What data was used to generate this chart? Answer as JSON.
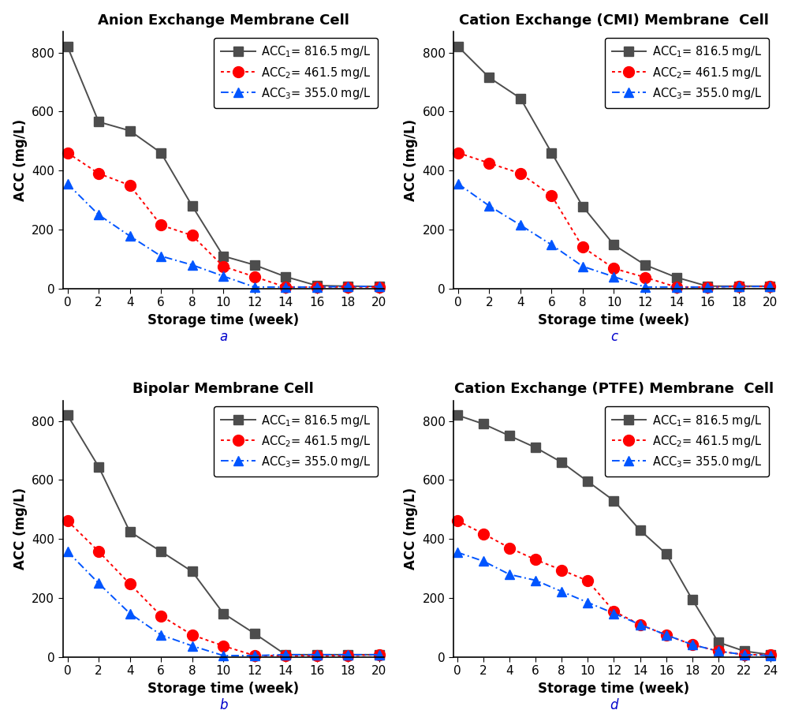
{
  "panels": [
    {
      "title": "Anion Exchange Membrane Cell",
      "label": "a",
      "x_weeks": [
        0,
        2,
        4,
        6,
        8,
        10,
        12,
        14,
        16,
        18,
        20
      ],
      "xlim": [
        -0.3,
        20.3
      ],
      "xticks": [
        0,
        2,
        4,
        6,
        8,
        10,
        12,
        14,
        16,
        18,
        20
      ],
      "series": [
        {
          "name": "ACC$_1$= 816.5 mg/L",
          "y": [
            820,
            565,
            535,
            460,
            280,
            110,
            80,
            40,
            10,
            8,
            7
          ],
          "color": "#4d4d4d",
          "linestyle": "solid",
          "marker": "s",
          "markersize": 8
        },
        {
          "name": "ACC$_2$= 461.5 mg/L",
          "y": [
            460,
            390,
            350,
            215,
            180,
            75,
            40,
            5,
            5,
            5,
            5
          ],
          "color": "#ff0000",
          "linestyle": "dotted",
          "marker": "o",
          "markersize": 10
        },
        {
          "name": "ACC$_3$= 355.0 mg/L",
          "y": [
            355,
            250,
            178,
            110,
            80,
            42,
            5,
            5,
            5,
            7,
            7
          ],
          "color": "#0055ff",
          "linestyle": "dashdot",
          "marker": "^",
          "markersize": 9
        }
      ],
      "ylim": [
        0,
        870
      ],
      "yticks": [
        0,
        200,
        400,
        600,
        800
      ],
      "ylabel": "ACC (mg/L)",
      "xlabel": "Storage time (week)"
    },
    {
      "title": "Cation Exchange (CMI) Membrane  Cell",
      "label": "c",
      "x_weeks": [
        0,
        2,
        4,
        6,
        8,
        10,
        12,
        14,
        16,
        18,
        20
      ],
      "xlim": [
        -0.3,
        20.3
      ],
      "xticks": [
        0,
        2,
        4,
        6,
        8,
        10,
        12,
        14,
        16,
        18,
        20
      ],
      "series": [
        {
          "name": "ACC$_1$= 816.5 mg/L",
          "y": [
            820,
            715,
            645,
            460,
            278,
            148,
            80,
            38,
            8,
            8,
            8
          ],
          "color": "#4d4d4d",
          "linestyle": "solid",
          "marker": "s",
          "markersize": 8
        },
        {
          "name": "ACC$_2$= 461.5 mg/L",
          "y": [
            460,
            425,
            390,
            315,
            140,
            68,
            38,
            5,
            5,
            7,
            7
          ],
          "color": "#ff0000",
          "linestyle": "dotted",
          "marker": "o",
          "markersize": 10
        },
        {
          "name": "ACC$_3$= 355.0 mg/L",
          "y": [
            355,
            280,
            215,
            148,
            75,
            40,
            5,
            5,
            5,
            7,
            7
          ],
          "color": "#0055ff",
          "linestyle": "dashdot",
          "marker": "^",
          "markersize": 9
        }
      ],
      "ylim": [
        0,
        870
      ],
      "yticks": [
        0,
        200,
        400,
        600,
        800
      ],
      "ylabel": "ACC (mg/L)",
      "xlabel": "Storage time (week)"
    },
    {
      "title": "Bipolar Membrane Cell",
      "label": "b",
      "x_weeks": [
        0,
        2,
        4,
        6,
        8,
        10,
        12,
        14,
        16,
        18,
        20
      ],
      "xlim": [
        -0.3,
        20.3
      ],
      "xticks": [
        0,
        2,
        4,
        6,
        8,
        10,
        12,
        14,
        16,
        18,
        20
      ],
      "series": [
        {
          "name": "ACC$_1$= 816.5 mg/L",
          "y": [
            820,
            645,
            425,
            358,
            290,
            148,
            80,
            8,
            8,
            8,
            8
          ],
          "color": "#4d4d4d",
          "linestyle": "solid",
          "marker": "s",
          "markersize": 8
        },
        {
          "name": "ACC$_2$= 461.5 mg/L",
          "y": [
            462,
            358,
            248,
            140,
            75,
            38,
            5,
            5,
            5,
            5,
            8
          ],
          "color": "#ff0000",
          "linestyle": "dotted",
          "marker": "o",
          "markersize": 10
        },
        {
          "name": "ACC$_3$= 355.0 mg/L",
          "y": [
            358,
            250,
            148,
            75,
            38,
            5,
            5,
            8,
            8,
            8,
            8
          ],
          "color": "#0055ff",
          "linestyle": "dashdot",
          "marker": "^",
          "markersize": 9
        }
      ],
      "ylim": [
        0,
        870
      ],
      "yticks": [
        0,
        200,
        400,
        600,
        800
      ],
      "ylabel": "ACC (mg/L)",
      "xlabel": "Storage time (week)"
    },
    {
      "title": "Cation Exchange (PTFE) Membrane  Cell",
      "label": "d",
      "x_weeks": [
        0,
        2,
        4,
        6,
        8,
        10,
        12,
        14,
        16,
        18,
        20,
        22,
        24
      ],
      "xlim": [
        -0.3,
        24.3
      ],
      "xticks": [
        0,
        2,
        4,
        6,
        8,
        10,
        12,
        14,
        16,
        18,
        20,
        22,
        24
      ],
      "series": [
        {
          "name": "ACC$_1$= 816.5 mg/L",
          "y": [
            820,
            790,
            750,
            710,
            660,
            595,
            530,
            430,
            350,
            195,
            50,
            20,
            8
          ],
          "color": "#4d4d4d",
          "linestyle": "solid",
          "marker": "s",
          "markersize": 8
        },
        {
          "name": "ACC$_2$= 461.5 mg/L",
          "y": [
            462,
            418,
            370,
            330,
            295,
            258,
            155,
            110,
            75,
            42,
            20,
            8,
            8
          ],
          "color": "#ff0000",
          "linestyle": "dotted",
          "marker": "o",
          "markersize": 10
        },
        {
          "name": "ACC$_3$= 355.0 mg/L",
          "y": [
            355,
            325,
            280,
            260,
            222,
            185,
            148,
            110,
            75,
            42,
            20,
            8,
            5
          ],
          "color": "#0055ff",
          "linestyle": "dashdot",
          "marker": "^",
          "markersize": 9
        }
      ],
      "ylim": [
        0,
        870
      ],
      "yticks": [
        0,
        200,
        400,
        600,
        800
      ],
      "ylabel": "ACC (mg/L)",
      "xlabel": "Storage time (week)"
    }
  ],
  "title_fontsize": 13,
  "label_fontsize": 12,
  "tick_fontsize": 11,
  "legend_fontsize": 10.5,
  "panel_label_fontsize": 12
}
